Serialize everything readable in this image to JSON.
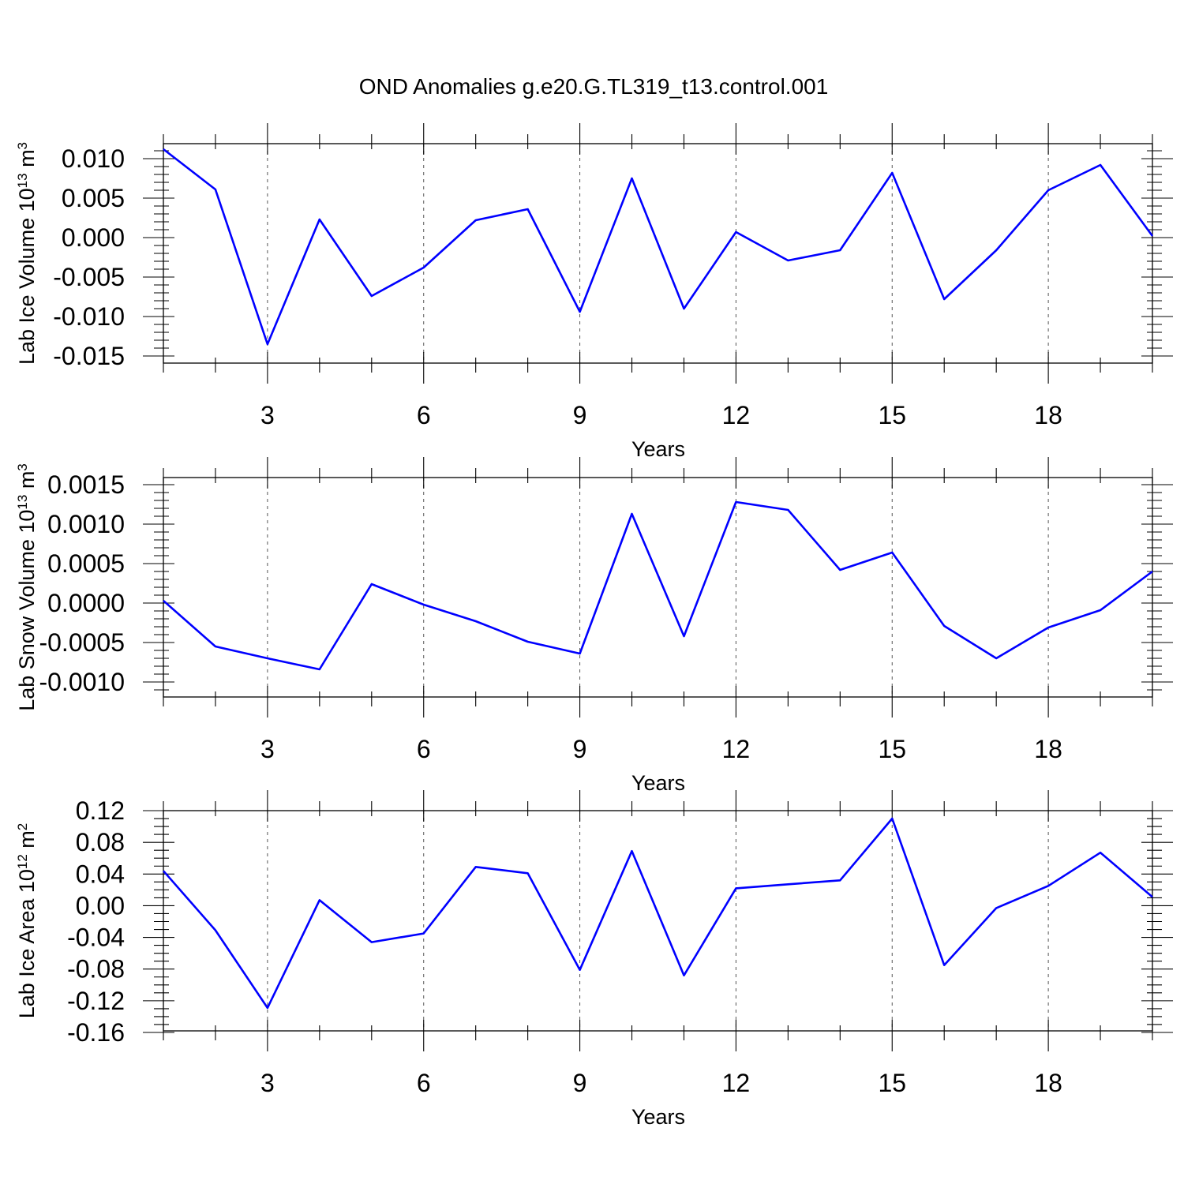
{
  "title": "OND Anomalies g.e20.G.TL319_t13.control.001",
  "colors": {
    "series": "#0000ff",
    "frame": "#000000",
    "grid": "#555555"
  },
  "chart_data": [
    {
      "type": "line",
      "ylabel": "Lab Ice Volume 10",
      "ylabel_exp": "13",
      "ylabel_unit": " m",
      "ylabel_unit_exp": "3",
      "xlabel": "Years",
      "xlim": [
        1,
        20
      ],
      "ylim": [
        -0.0159,
        0.0119
      ],
      "x_ticks": [
        3,
        6,
        9,
        12,
        15,
        18
      ],
      "x_tick_labels": [
        "3",
        "6",
        "9",
        "12",
        "15",
        "18"
      ],
      "y_ticks": [
        0.01,
        0.005,
        0,
        -0.005,
        -0.01,
        -0.015
      ],
      "y_tick_labels": [
        "0.010",
        "0.005",
        "0.000",
        "-0.005",
        "-0.010",
        "-0.015"
      ],
      "y_minor_step": 0.001,
      "x": [
        1,
        2,
        3,
        4,
        5,
        6,
        7,
        8,
        9,
        10,
        11,
        12,
        13,
        14,
        15,
        16,
        17,
        18,
        19,
        20
      ],
      "values": [
        0.0112,
        0.0061,
        -0.0135,
        0.0023,
        -0.0074,
        -0.0038,
        0.0022,
        0.0036,
        -0.0094,
        0.0075,
        -0.009,
        0.0007,
        -0.0029,
        -0.0016,
        0.0082,
        -0.0078,
        -0.0016,
        0.006,
        0.0092,
        0.0002
      ]
    },
    {
      "type": "line",
      "ylabel": "Lab Snow Volume 10",
      "ylabel_exp": "13",
      "ylabel_unit": " m",
      "ylabel_unit_exp": "3",
      "xlabel": "Years",
      "xlim": [
        1,
        20
      ],
      "ylim": [
        -0.00119,
        0.00159
      ],
      "x_ticks": [
        3,
        6,
        9,
        12,
        15,
        18
      ],
      "x_tick_labels": [
        "3",
        "6",
        "9",
        "12",
        "15",
        "18"
      ],
      "y_ticks": [
        0.0015,
        0.001,
        0.0005,
        0,
        -0.0005,
        -0.001
      ],
      "y_tick_labels": [
        "0.0015",
        "0.0010",
        "0.0005",
        "0.0000",
        "-0.0005",
        "-0.0010"
      ],
      "y_minor_step": 0.0001,
      "x": [
        1,
        2,
        3,
        4,
        5,
        6,
        7,
        8,
        9,
        10,
        11,
        12,
        13,
        14,
        15,
        16,
        17,
        18,
        19,
        20
      ],
      "values": [
        3e-05,
        -0.00055,
        -0.0007,
        -0.00084,
        0.00024,
        -2e-05,
        -0.00023,
        -0.00049,
        -0.00064,
        0.00113,
        -0.00042,
        0.00128,
        0.00118,
        0.00042,
        0.00064,
        -0.00029,
        -0.0007,
        -0.00031,
        -9e-05,
        0.0004
      ]
    },
    {
      "type": "line",
      "ylabel": "Lab Ice Area 10",
      "ylabel_exp": "12",
      "ylabel_unit": " m",
      "ylabel_unit_exp": "2",
      "xlabel": "Years",
      "xlim": [
        1,
        20
      ],
      "ylim": [
        -0.158,
        0.12
      ],
      "x_ticks": [
        3,
        6,
        9,
        12,
        15,
        18
      ],
      "x_tick_labels": [
        "3",
        "6",
        "9",
        "12",
        "15",
        "18"
      ],
      "y_ticks": [
        0.12,
        0.08,
        0.04,
        0,
        -0.04,
        -0.08,
        -0.12,
        -0.16
      ],
      "y_tick_labels": [
        "0.12",
        "0.08",
        "0.04",
        "0.00",
        "-0.04",
        "-0.08",
        "-0.12",
        "-0.16"
      ],
      "y_minor_step": 0.01,
      "x": [
        1,
        2,
        3,
        4,
        5,
        6,
        7,
        8,
        9,
        10,
        11,
        12,
        13,
        14,
        15,
        16,
        17,
        18,
        19,
        20
      ],
      "values": [
        0.044,
        -0.031,
        -0.129,
        0.007,
        -0.046,
        -0.035,
        0.049,
        0.041,
        -0.081,
        0.069,
        -0.088,
        0.022,
        0.027,
        0.032,
        0.11,
        -0.075,
        -0.003,
        0.025,
        0.067,
        0.011
      ]
    }
  ]
}
